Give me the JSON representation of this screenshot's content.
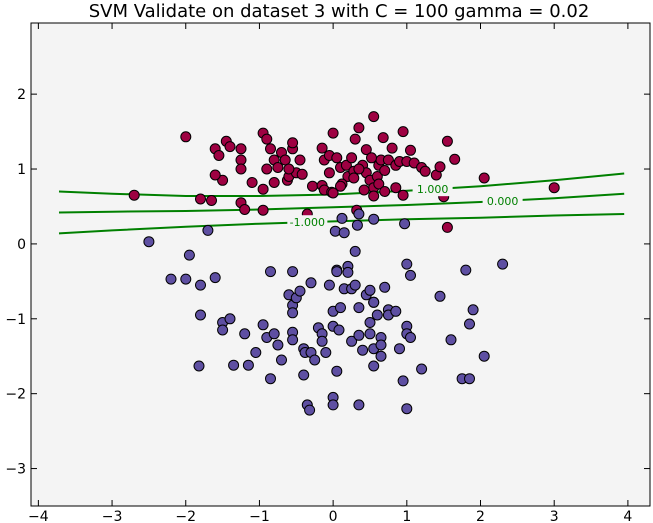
{
  "chart_data": {
    "type": "scatter",
    "title": "SVM Validate on dataset 3 with C = 100 gamma = 0.02",
    "xlabel": "",
    "ylabel": "",
    "xlim": [
      -4.1,
      4.3
    ],
    "ylim": [
      -3.5,
      2.95
    ],
    "xticks": [
      -4,
      -3,
      -2,
      -1,
      0,
      1,
      2,
      3,
      4
    ],
    "yticks": [
      -3,
      -2,
      -1,
      0,
      1,
      2
    ],
    "xtick_labels": [
      "−4",
      "−3",
      "−2",
      "−1",
      "0",
      "1",
      "2",
      "3",
      "4"
    ],
    "ytick_labels": [
      "−3",
      "−2",
      "−1",
      "0",
      "1",
      "2"
    ],
    "grid": false,
    "background": "#f4f4f4",
    "series": [
      {
        "color": "#9e0142",
        "points": [
          [
            -2.7,
            0.65
          ],
          [
            -2.0,
            1.43
          ],
          [
            -1.6,
            1.27
          ],
          [
            -1.45,
            1.37
          ],
          [
            -1.4,
            1.3
          ],
          [
            -1.25,
            1.27
          ],
          [
            -1.25,
            1.12
          ],
          [
            -1.25,
            1.0
          ],
          [
            -1.55,
            1.18
          ],
          [
            -1.5,
            0.85
          ],
          [
            -1.6,
            0.92
          ],
          [
            -1.8,
            0.6
          ],
          [
            -1.65,
            0.58
          ],
          [
            -1.25,
            0.55
          ],
          [
            -1.2,
            0.46
          ],
          [
            -0.95,
            0.45
          ],
          [
            -1.1,
            0.82
          ],
          [
            -0.95,
            0.73
          ],
          [
            -0.8,
            0.82
          ],
          [
            -0.62,
            0.85
          ],
          [
            -0.6,
            0.9
          ],
          [
            -0.5,
            0.95
          ],
          [
            -0.95,
            1.48
          ],
          [
            -0.9,
            1.4
          ],
          [
            -0.85,
            1.27
          ],
          [
            -0.7,
            1.22
          ],
          [
            -0.55,
            1.27
          ],
          [
            -0.55,
            1.35
          ],
          [
            -0.45,
            1.12
          ],
          [
            -0.65,
            1.12
          ],
          [
            -0.8,
            1.12
          ],
          [
            -0.9,
            1.0
          ],
          [
            -0.75,
            1.02
          ],
          [
            -0.6,
            1.0
          ],
          [
            -0.42,
            0.93
          ],
          [
            -0.28,
            0.77
          ],
          [
            -0.15,
            0.78
          ],
          [
            -0.12,
            0.72
          ],
          [
            -0.02,
            0.69
          ],
          [
            -0.15,
            1.28
          ],
          [
            -0.12,
            1.12
          ],
          [
            -0.05,
            1.18
          ],
          [
            0.0,
            1.48
          ],
          [
            0.05,
            1.15
          ],
          [
            0.1,
            1.02
          ],
          [
            0.18,
            1.05
          ],
          [
            0.2,
            0.9
          ],
          [
            0.28,
            0.97
          ],
          [
            0.3,
            1.4
          ],
          [
            0.35,
            1.55
          ],
          [
            0.45,
            1.26
          ],
          [
            0.4,
            1.05
          ],
          [
            0.45,
            0.95
          ],
          [
            0.5,
            0.85
          ],
          [
            0.55,
            0.75
          ],
          [
            0.55,
            1.7
          ],
          [
            0.6,
            0.9
          ],
          [
            0.62,
            1.05
          ],
          [
            0.65,
            1.12
          ],
          [
            0.7,
            0.98
          ],
          [
            0.75,
            1.12
          ],
          [
            0.8,
            1.28
          ],
          [
            0.85,
            1.05
          ],
          [
            0.9,
            1.1
          ],
          [
            0.95,
            1.5
          ],
          [
            1.0,
            1.1
          ],
          [
            1.05,
            1.25
          ],
          [
            1.1,
            1.08
          ],
          [
            1.2,
            1.02
          ],
          [
            1.25,
            0.97
          ],
          [
            1.4,
            0.92
          ],
          [
            1.45,
            1.03
          ],
          [
            1.5,
            0.63
          ],
          [
            1.55,
            1.37
          ],
          [
            1.55,
            0.22
          ],
          [
            1.65,
            1.13
          ],
          [
            2.05,
            0.88
          ],
          [
            3.0,
            0.75
          ],
          [
            0.0,
            0.68
          ],
          [
            0.12,
            0.8
          ],
          [
            0.28,
            0.88
          ],
          [
            0.32,
            0.45
          ],
          [
            0.42,
            0.72
          ],
          [
            0.55,
            0.64
          ],
          [
            0.62,
            0.8
          ],
          [
            0.7,
            0.7
          ],
          [
            0.85,
            0.75
          ],
          [
            0.95,
            0.65
          ],
          [
            -0.35,
            0.4
          ],
          [
            0.1,
            0.77
          ],
          [
            0.25,
            1.15
          ],
          [
            -0.05,
            0.95
          ],
          [
            0.68,
            1.42
          ],
          [
            0.35,
            1.0
          ],
          [
            0.52,
            1.15
          ]
        ]
      },
      {
        "color": "#5e4fa2",
        "points": [
          [
            -2.5,
            0.03
          ],
          [
            -2.2,
            -0.47
          ],
          [
            -2.0,
            -0.47
          ],
          [
            -1.95,
            -0.15
          ],
          [
            -1.8,
            -0.55
          ],
          [
            -1.8,
            -0.95
          ],
          [
            -1.82,
            -1.63
          ],
          [
            -1.7,
            0.18
          ],
          [
            -1.6,
            -0.45
          ],
          [
            -1.5,
            -1.05
          ],
          [
            -1.5,
            -1.15
          ],
          [
            -1.4,
            -1.0
          ],
          [
            -1.35,
            -1.62
          ],
          [
            -1.2,
            -1.2
          ],
          [
            -1.15,
            -1.62
          ],
          [
            -1.05,
            -1.45
          ],
          [
            -0.95,
            -1.08
          ],
          [
            -0.9,
            -1.25
          ],
          [
            -0.85,
            -1.8
          ],
          [
            -0.85,
            -0.37
          ],
          [
            -0.8,
            -1.2
          ],
          [
            -0.75,
            -1.35
          ],
          [
            -0.7,
            -1.55
          ],
          [
            -0.6,
            -0.68
          ],
          [
            -0.55,
            -1.18
          ],
          [
            -0.55,
            -1.28
          ],
          [
            -0.55,
            -0.82
          ],
          [
            -0.55,
            -0.92
          ],
          [
            -0.55,
            -0.37
          ],
          [
            -0.5,
            -0.72
          ],
          [
            -0.45,
            -0.63
          ],
          [
            -0.4,
            -1.75
          ],
          [
            -0.4,
            -1.4
          ],
          [
            -0.38,
            -1.45
          ],
          [
            -0.35,
            -2.15
          ],
          [
            -0.32,
            -2.22
          ],
          [
            -0.3,
            -0.52
          ],
          [
            -0.3,
            -1.45
          ],
          [
            -0.25,
            -1.55
          ],
          [
            -0.2,
            -1.12
          ],
          [
            -0.15,
            -1.2
          ],
          [
            -0.15,
            -1.3
          ],
          [
            -0.1,
            -1.45
          ],
          [
            -0.05,
            -0.55
          ],
          [
            0.0,
            -0.9
          ],
          [
            0.0,
            -1.1
          ],
          [
            0.0,
            -2.05
          ],
          [
            0.0,
            -2.15
          ],
          [
            0.05,
            -0.35
          ],
          [
            0.05,
            -0.37
          ],
          [
            0.05,
            -1.7
          ],
          [
            0.08,
            -1.15
          ],
          [
            0.1,
            -0.85
          ],
          [
            0.15,
            -0.6
          ],
          [
            0.2,
            -0.3
          ],
          [
            0.2,
            -0.38
          ],
          [
            0.25,
            -1.3
          ],
          [
            0.25,
            -0.6
          ],
          [
            0.3,
            -0.1
          ],
          [
            0.3,
            -0.55
          ],
          [
            0.35,
            -2.15
          ],
          [
            0.35,
            -1.22
          ],
          [
            0.35,
            -0.85
          ],
          [
            0.4,
            -1.42
          ],
          [
            0.45,
            -0.68
          ],
          [
            0.5,
            -0.62
          ],
          [
            0.5,
            -1.05
          ],
          [
            0.5,
            -1.2
          ],
          [
            0.55,
            -0.78
          ],
          [
            0.55,
            -0.78
          ],
          [
            0.55,
            -1.4
          ],
          [
            0.55,
            -1.63
          ],
          [
            0.6,
            -0.95
          ],
          [
            0.65,
            -1.25
          ],
          [
            0.65,
            -1.35
          ],
          [
            0.65,
            -1.5
          ],
          [
            0.7,
            -0.58
          ],
          [
            0.75,
            -0.88
          ],
          [
            0.75,
            -0.95
          ],
          [
            0.85,
            -0.9
          ],
          [
            0.9,
            -1.4
          ],
          [
            0.95,
            -1.83
          ],
          [
            1.0,
            -1.1
          ],
          [
            1.0,
            -1.2
          ],
          [
            1.0,
            -2.2
          ],
          [
            1.0,
            -0.27
          ],
          [
            1.05,
            -0.42
          ],
          [
            1.05,
            -1.25
          ],
          [
            1.2,
            -1.67
          ],
          [
            1.45,
            -0.7
          ],
          [
            1.6,
            -1.28
          ],
          [
            1.75,
            -1.8
          ],
          [
            1.8,
            -0.35
          ],
          [
            1.85,
            -1.8
          ],
          [
            1.85,
            -1.07
          ],
          [
            1.9,
            -0.88
          ],
          [
            2.05,
            -1.5
          ],
          [
            2.3,
            -0.27
          ],
          [
            0.03,
            0.17
          ],
          [
            0.12,
            0.34
          ],
          [
            0.33,
            0.25
          ],
          [
            0.55,
            0.33
          ],
          [
            0.97,
            0.27
          ],
          [
            0.15,
            0.15
          ],
          [
            0.35,
            0.4
          ]
        ]
      }
    ],
    "contours": [
      {
        "label": "1.000",
        "x": [
          -3.72,
          -3.0,
          -2.0,
          -1.0,
          0.0,
          1.0,
          2.0,
          3.0,
          3.95
        ],
        "y": [
          0.7,
          0.67,
          0.64,
          0.64,
          0.66,
          0.71,
          0.77,
          0.85,
          0.94
        ]
      },
      {
        "label": "0.000",
        "x": [
          -3.72,
          -3.0,
          -2.0,
          -1.0,
          0.0,
          1.0,
          2.0,
          3.0,
          3.95
        ],
        "y": [
          0.42,
          0.43,
          0.44,
          0.46,
          0.49,
          0.52,
          0.56,
          0.61,
          0.67
        ]
      },
      {
        "label": "-1.000",
        "x": [
          -3.72,
          -3.0,
          -2.0,
          -1.0,
          0.0,
          1.0,
          2.0,
          3.0,
          3.95
        ],
        "y": [
          0.14,
          0.18,
          0.23,
          0.27,
          0.3,
          0.33,
          0.35,
          0.38,
          0.4
        ]
      }
    ],
    "contour_color": "#008000"
  }
}
